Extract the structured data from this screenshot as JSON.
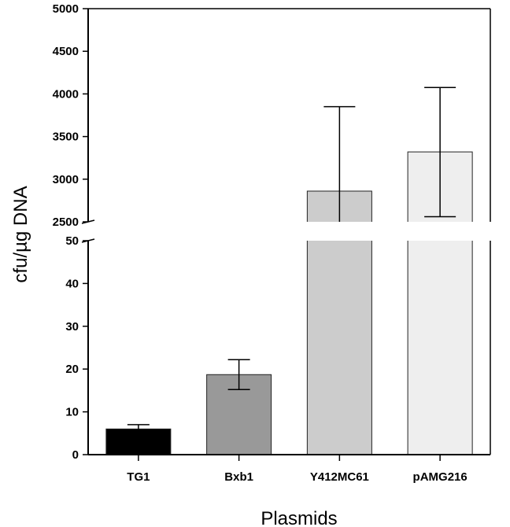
{
  "chart_data": {
    "type": "bar",
    "title": "",
    "xlabel": "Plasmids",
    "ylabel": "cfu/µg DNA",
    "categories": [
      "TG1",
      "Bxb1",
      "Y412MC61",
      "pAMG216"
    ],
    "values": [
      6,
      18.7,
      2860,
      3320
    ],
    "error_low": [
      5.1,
      15.2,
      2500,
      2560
    ],
    "error_high": [
      7.0,
      22.2,
      3850,
      4075
    ],
    "colors": [
      "#000000",
      "#999999",
      "#cccccc",
      "#eeeeee"
    ],
    "y_axis_break": {
      "lower_range": [
        0,
        50
      ],
      "upper_range": [
        2500,
        5000
      ]
    },
    "lower_ticks": [
      0,
      10,
      20,
      30,
      40,
      50
    ],
    "upper_ticks": [
      2500,
      3000,
      3500,
      4000,
      4500,
      5000
    ],
    "grid": false,
    "legend": "none"
  }
}
